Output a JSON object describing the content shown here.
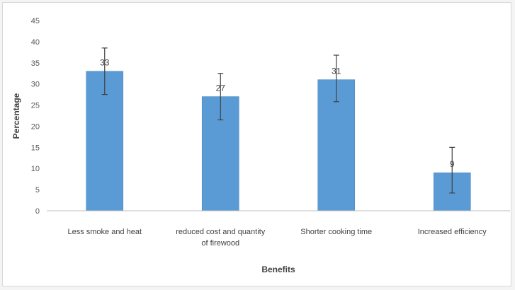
{
  "chart_data": {
    "type": "bar",
    "title": "",
    "xlabel": "Benefits",
    "ylabel": "Percentage",
    "ylim": [
      0,
      45
    ],
    "yticks": [
      0,
      5,
      10,
      15,
      20,
      25,
      30,
      35,
      40,
      45
    ],
    "grid": false,
    "legend": "none",
    "categories": [
      [
        "Less smoke and heat"
      ],
      [
        "reduced cost and quantity",
        "of firewood"
      ],
      [
        "Shorter cooking time"
      ],
      [
        "Increased efficiency"
      ]
    ],
    "values": [
      33,
      27,
      31,
      9
    ],
    "data_labels": [
      "33",
      "27",
      "31",
      "9"
    ],
    "error_bars": [
      {
        "low": 27.5,
        "high": 38.5
      },
      {
        "low": 21.5,
        "high": 32.5
      },
      {
        "low": 25.8,
        "high": 36.8
      },
      {
        "low": 4.2,
        "high": 15.0
      }
    ],
    "colors": {
      "bar": "#5b9bd5",
      "bar_edge": "#4a89c3",
      "axis": "#bfbfbf",
      "error": "#404040"
    }
  }
}
